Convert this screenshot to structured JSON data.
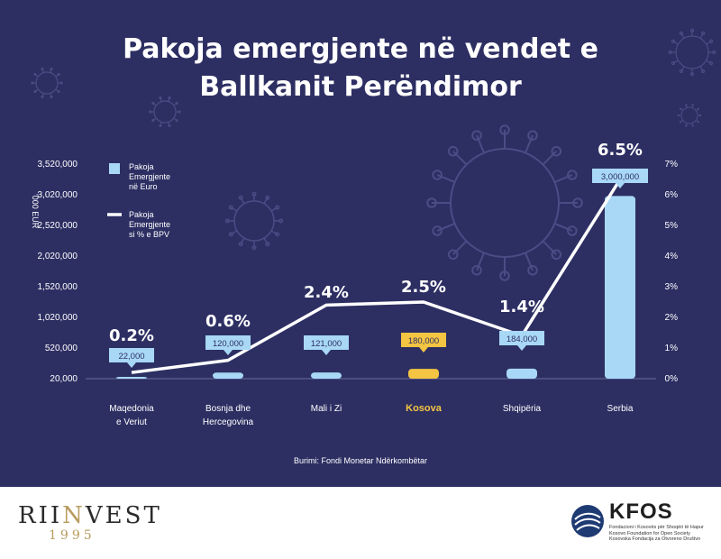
{
  "title_line1": "Pakoja emergjente në vendet e",
  "title_line2": "Ballkanit Perëndimor",
  "source": "Burimi: Fondi Monetar Ndërkombëtar",
  "colors": {
    "background": "#2d2f63",
    "bar": "#a8d8f5",
    "highlight": "#f4c542",
    "line": "#ffffff",
    "axis_text": "#ffffff",
    "label_text": "#2d2f63",
    "virus_outline": "#4a4d85"
  },
  "footer": {
    "riinvest_word_a": "RII",
    "riinvest_word_b": "N",
    "riinvest_word_c": "VEST",
    "riinvest_year": "1995",
    "kfos_name": "KFOS",
    "kfos_sub_1": "Fondacioni i Kosovës për Shoqëri të Hapur",
    "kfos_sub_2": "Kosovo Foundation for Open Society",
    "kfos_sub_3": "Kosovska Fondacija za Otvoreno Društvo"
  },
  "chart_data": {
    "type": "bar",
    "categories": [
      [
        "Maqedonia",
        "e Veriut"
      ],
      [
        "Bosnja dhe",
        "Hercegovina"
      ],
      [
        "Mali i Zi"
      ],
      [
        "Kosova"
      ],
      [
        "Shqipëria"
      ],
      [
        "Serbia"
      ]
    ],
    "highlight_index": 3,
    "series": [
      {
        "name": "Pakoja Emergjente në Euro",
        "legend_lines": [
          "Pakoja",
          "Emergjente",
          "në Euro"
        ],
        "type": "bar",
        "axis": "left",
        "values": [
          22000,
          120000,
          121000,
          180000,
          184000,
          3000000
        ],
        "labels": [
          "22,000",
          "120,000",
          "121,000",
          "180,000",
          "184,000",
          "3,000,000"
        ]
      },
      {
        "name": "Pakoja Emergjente si % e BPV",
        "legend_lines": [
          "Pakoja",
          "Emergjente",
          "si % e BPV"
        ],
        "type": "line",
        "axis": "right",
        "values": [
          0.2,
          0.6,
          2.4,
          2.5,
          1.4,
          6.5
        ],
        "labels": [
          "0.2%",
          "0.6%",
          "2.4%",
          "2.5%",
          "1.4%",
          "6.5%"
        ]
      }
    ],
    "yaxis_left": {
      "label": "'000 EUR",
      "ticks": [
        20000,
        520000,
        1020000,
        1520000,
        2020000,
        2520000,
        3020000,
        3520000
      ],
      "tick_labels": [
        "20,000",
        "520,000",
        "1,020,000",
        "1,520,000",
        "2,020,000",
        "2,520,000",
        "3,020,000",
        "3,520,000"
      ],
      "ylim": [
        20000,
        3520000
      ]
    },
    "yaxis_right": {
      "ticks": [
        0,
        1,
        2,
        3,
        4,
        5,
        6,
        7
      ],
      "tick_labels": [
        "0%",
        "1%",
        "2%",
        "3%",
        "4%",
        "5%",
        "6%",
        "7%"
      ],
      "ylim": [
        0,
        7
      ]
    },
    "grid": false,
    "legend_position": "top-left"
  }
}
